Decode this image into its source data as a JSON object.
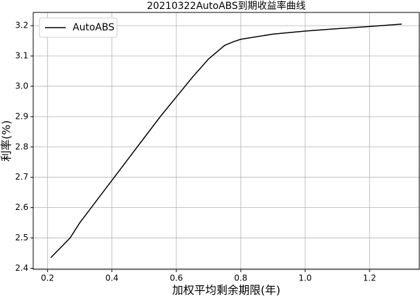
{
  "chart_data": {
    "type": "line",
    "title": "20210322AutoABS到期收益率曲线",
    "xlabel": "加权平均剩余期限(年)",
    "ylabel": "利率(%)",
    "x": [
      0.21,
      0.27,
      0.3,
      0.35,
      0.4,
      0.45,
      0.5,
      0.55,
      0.6,
      0.65,
      0.7,
      0.75,
      0.78,
      0.8,
      0.9,
      1.0,
      1.1,
      1.2,
      1.3
    ],
    "series": [
      {
        "name": "AutoABS",
        "color": "#000000",
        "values": [
          2.435,
          2.5,
          2.55,
          2.62,
          2.69,
          2.76,
          2.83,
          2.9,
          2.965,
          3.03,
          3.09,
          3.135,
          3.148,
          3.155,
          3.172,
          3.182,
          3.19,
          3.197,
          3.205
        ]
      }
    ],
    "xlim": [
      0.1555,
      1.3545
    ],
    "ylim": [
      2.3965,
      3.2435
    ],
    "xticks": [
      0.2,
      0.4,
      0.6,
      0.8,
      {
        "value": 1,
        "label": "1.0"
      },
      1.2
    ],
    "yticks": [
      2.4,
      2.5,
      2.6,
      2.7,
      2.8,
      2.9,
      {
        "value": 3,
        "label": "3.0"
      },
      3.1,
      3.2
    ],
    "grid": true,
    "legend": "upper-left"
  }
}
